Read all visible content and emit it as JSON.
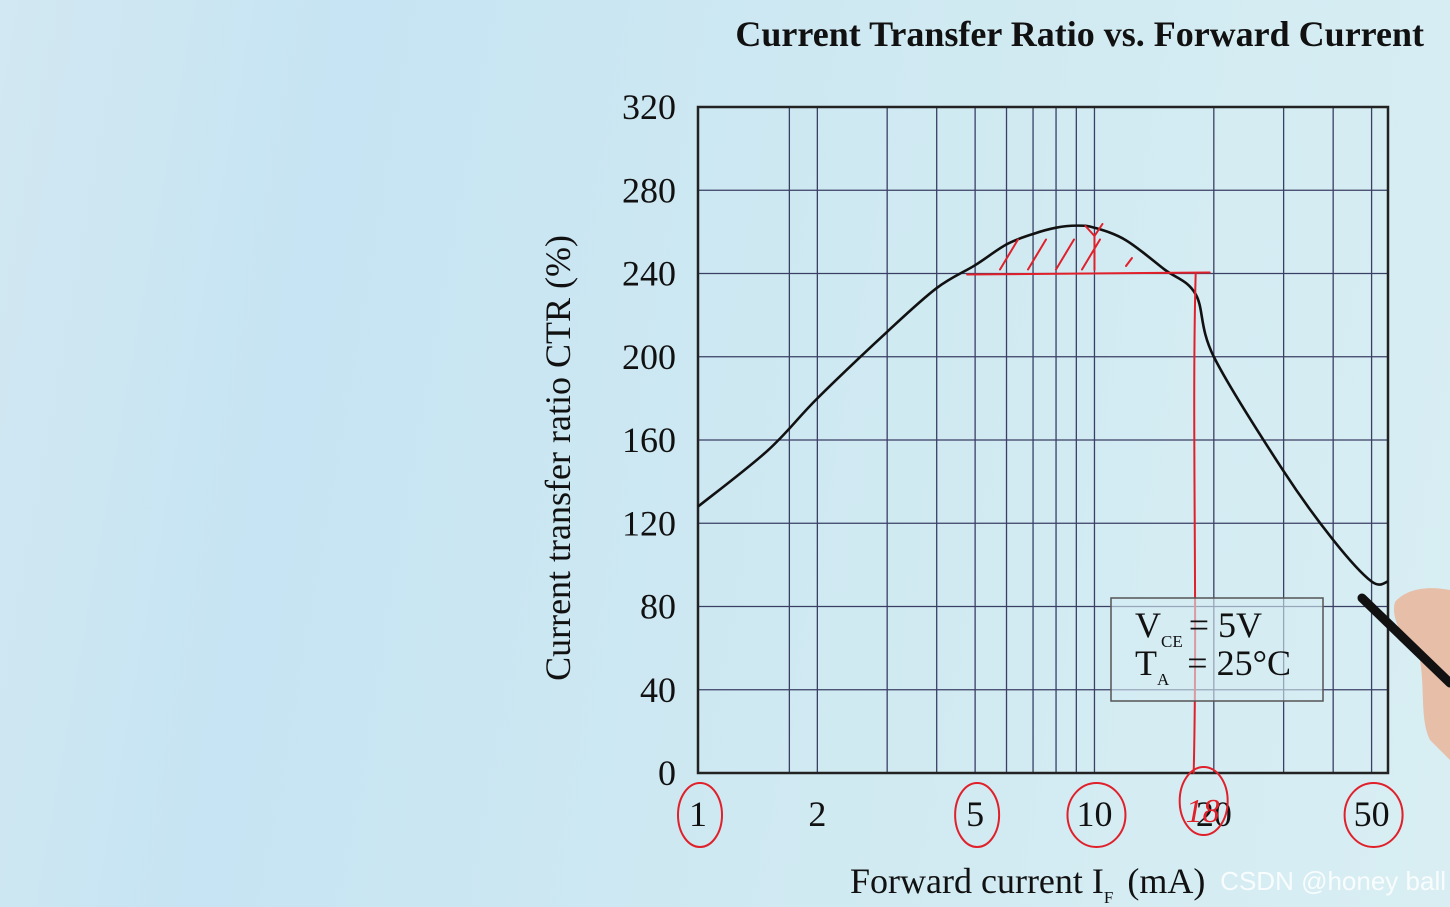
{
  "chart_data": {
    "type": "line",
    "title": "Current Transfer Ratio vs. Forward Current",
    "xlabel": "Forward current I",
    "xlabel_sub": "F",
    "xlabel_unit": "(mA)",
    "ylabel": "Current transfer ratio CTR (%)",
    "x_scale": "log",
    "xlim": [
      1,
      55
    ],
    "ylim": [
      0,
      320
    ],
    "x_ticks": [
      1,
      2,
      5,
      10,
      20,
      50
    ],
    "x_tick_labels": [
      "1",
      "2",
      "5",
      "10",
      "20",
      "50"
    ],
    "y_ticks": [
      0,
      40,
      80,
      120,
      160,
      200,
      240,
      280,
      320
    ],
    "y_tick_labels": [
      "0",
      "40",
      "80",
      "120",
      "160",
      "200",
      "240",
      "280",
      "320"
    ],
    "x_gridlines": [
      1.7,
      2,
      3,
      4,
      5,
      6,
      7,
      8,
      9,
      10,
      20,
      30,
      40,
      50
    ],
    "grid": true,
    "series": [
      {
        "x": [
          1,
          1.5,
          2,
          3,
          4,
          5,
          6,
          7,
          8,
          9,
          10,
          12,
          15,
          18,
          20,
          30,
          40,
          50,
          55
        ],
        "y": [
          128,
          155,
          180,
          212,
          233,
          244,
          254,
          259,
          262,
          263,
          262,
          256,
          242,
          230,
          200,
          145,
          112,
          92,
          92
        ]
      }
    ],
    "conditions": {
      "line1_main": "V",
      "line1_sub": "CE",
      "line1_rest": "= 5V",
      "line2_main": "T",
      "line2_sub": "A",
      "line2_rest": "= 25°C"
    },
    "annotations": {
      "circled_x_values": [
        "1",
        "5",
        "10",
        "50"
      ],
      "handwritten_label": "18",
      "peak_marker_x": 10,
      "threshold_ctr": 240,
      "threshold_x_range": [
        5,
        18
      ],
      "color": "#e0202a"
    }
  },
  "watermark": "CSDN @honey ball"
}
